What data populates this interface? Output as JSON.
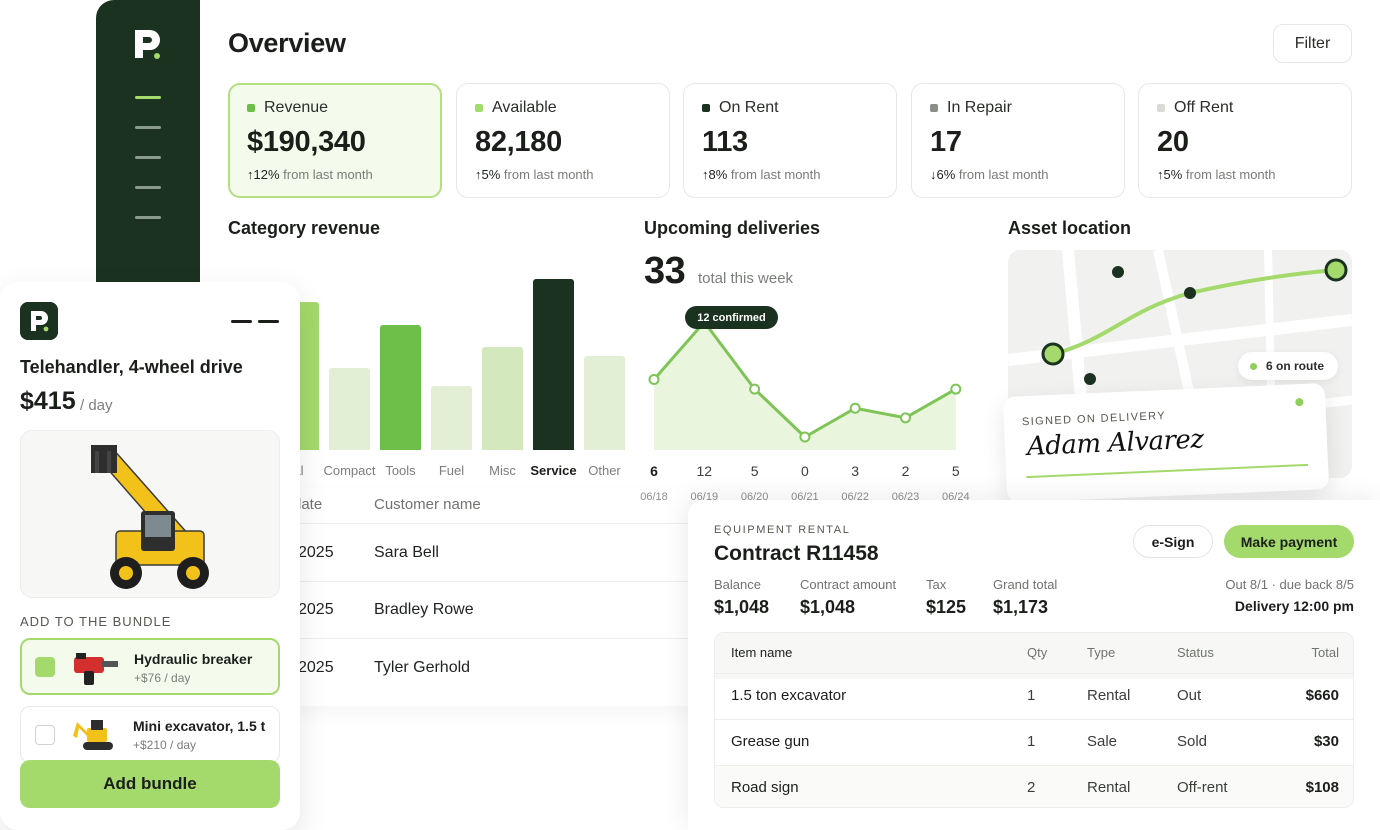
{
  "header": {
    "title": "Overview",
    "filter_label": "Filter"
  },
  "stats": [
    {
      "label": "Revenue",
      "value": "$190,340",
      "arrow": "↑",
      "change": "12%",
      "suffix": "from last month",
      "color": "#6cc04a"
    },
    {
      "label": "Available",
      "value": "82,180",
      "arrow": "↑",
      "change": "5%",
      "suffix": "from last month",
      "color": "#a4d96c"
    },
    {
      "label": "On Rent",
      "value": "113",
      "arrow": "↑",
      "change": "8%",
      "suffix": "from last month",
      "color": "#1b3220"
    },
    {
      "label": "In Repair",
      "value": "17",
      "arrow": "↓",
      "change": "6%",
      "suffix": "from last month",
      "color": "#8a8f89"
    },
    {
      "label": "Off Rent",
      "value": "20",
      "arrow": "↑",
      "change": "5%",
      "suffix": "from last month",
      "color": "#d9dcd6"
    }
  ],
  "category_revenue": {
    "title": "Category revenue",
    "selected": "Service"
  },
  "chart_data": [
    {
      "type": "bar",
      "title": "Category revenue",
      "categories": [
        "al",
        "Compact",
        "Tools",
        "Fuel",
        "Misc",
        "Service",
        "Other"
      ],
      "values": [
        148,
        82,
        125,
        64,
        103,
        171,
        94
      ],
      "colors": [
        "#a4d96c",
        "#e2efd4",
        "#6cc04a",
        "#e2efd4",
        "#d3e8bc",
        "#1b3220",
        "#e2efd4"
      ]
    },
    {
      "type": "area",
      "title": "Upcoming deliveries",
      "x": [
        "06/18",
        "06/19",
        "06/20",
        "06/21",
        "06/22",
        "06/23",
        "06/24"
      ],
      "values": [
        6,
        12,
        5,
        0,
        3,
        2,
        5
      ]
    }
  ],
  "deliveries": {
    "title": "Upcoming deliveries",
    "total": "33",
    "total_label": "total this week",
    "tooltip": "12 confirmed",
    "days": [
      {
        "value": "6",
        "date": "06/18"
      },
      {
        "value": "12",
        "date": "06/19"
      },
      {
        "value": "5",
        "date": "06/20"
      },
      {
        "value": "0",
        "date": "06/21"
      },
      {
        "value": "3",
        "date": "06/22"
      },
      {
        "value": "2",
        "date": "06/23"
      },
      {
        "value": "5",
        "date": "06/24"
      }
    ]
  },
  "asset_location": {
    "title": "Asset location",
    "route_label": "6 on route",
    "signed_caption": "SIGNED ON DELIVERY",
    "signature": "Adam Alvarez"
  },
  "back_table": {
    "col_date": "late",
    "col_customer": "Customer name",
    "rows": [
      {
        "date": "2025",
        "customer": "Sara Bell"
      },
      {
        "date": "2025",
        "customer": "Bradley Rowe"
      },
      {
        "date": "2025",
        "customer": "Tyler Gerhold"
      }
    ]
  },
  "product": {
    "title": "Telehandler, 4-wheel drive",
    "price": "$415",
    "per": "/ day",
    "bundle_caption": "ADD TO THE BUNDLE",
    "options": [
      {
        "name": "Hydraulic breaker",
        "price": "+$76 / day",
        "selected": true
      },
      {
        "name": "Mini excavator, 1.5 t",
        "price": "+$210 / day",
        "selected": false
      }
    ],
    "add_button": "Add bundle"
  },
  "contract": {
    "kicker": "EQUIPMENT RENTAL",
    "title": "Contract R11458",
    "esign_label": "e-Sign",
    "pay_label": "Make payment",
    "balance_label": "Balance",
    "balance": "$1,048",
    "amount_label": "Contract amount",
    "amount": "$1,048",
    "tax_label": "Tax",
    "tax": "$125",
    "grand_label": "Grand total",
    "grand": "$1,173",
    "due_text": "Out 8/1 · due back 8/5",
    "delivery_text": "Delivery 12:00 pm",
    "columns": {
      "name": "Item name",
      "qty": "Qty",
      "type": "Type",
      "status": "Status",
      "total": "Total"
    },
    "items": [
      {
        "name": "1.5 ton excavator",
        "qty": "1",
        "type": "Rental",
        "status": "Out",
        "total": "$660"
      },
      {
        "name": "Grease gun",
        "qty": "1",
        "type": "Sale",
        "status": "Sold",
        "total": "$30"
      },
      {
        "name": "Road sign",
        "qty": "2",
        "type": "Rental",
        "status": "Off-rent",
        "total": "$108"
      }
    ]
  }
}
